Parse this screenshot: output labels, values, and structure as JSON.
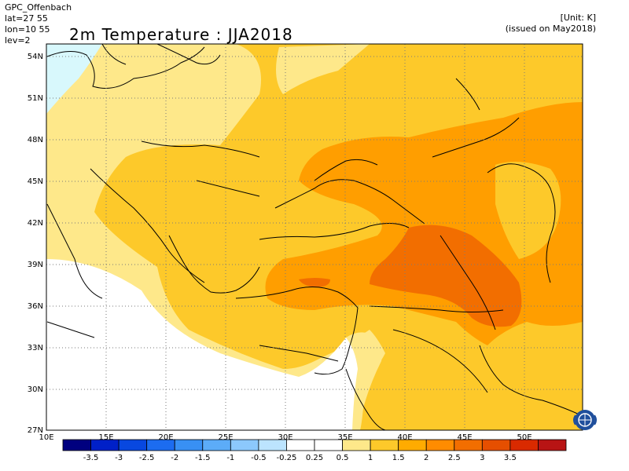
{
  "header": {
    "source": "GPC_Offenbach",
    "lat": "lat=27 55",
    "lon": "lon=10 55",
    "lev": "lev=2",
    "title": "2m Temperature : JJA2018",
    "unit": "[Unit: K]",
    "issued": "(issued on May2018)"
  },
  "axes": {
    "lat_labels": [
      "54N",
      "51N",
      "48N",
      "45N",
      "42N",
      "39N",
      "36N",
      "33N",
      "30N",
      "27N"
    ],
    "lon_labels": [
      "10E",
      "15E",
      "20E",
      "25E",
      "30E",
      "35E",
      "40E",
      "45E",
      "50E"
    ]
  },
  "colorbar": {
    "colors": [
      "#00007f",
      "#0020c8",
      "#0848e0",
      "#1c6cf0",
      "#3890f4",
      "#5cacf8",
      "#8cc8fc",
      "#bce4fe",
      "#ffffff",
      "#ffffff",
      "#fee88a",
      "#fdc92a",
      "#ffab00",
      "#ff8c00",
      "#f26e00",
      "#e64f00",
      "#d92a00",
      "#b81414"
    ],
    "tick_labels": [
      "-3.5",
      "-3",
      "-2.5",
      "-2",
      "-1.5",
      "-1",
      "-0.5",
      "-0.25",
      "0.25",
      "0.5",
      "1",
      "1.5",
      "2",
      "2.5",
      "3",
      "3.5"
    ]
  },
  "map": {
    "field_colors": {
      "base": "#fdc92a",
      "light": "#fee88a",
      "cyan": "#d8f8fc",
      "orange": "#ff9e00",
      "deep": "#f26e00",
      "white": "#ffffff"
    },
    "logo_icon": "wmo-emblem-icon"
  }
}
